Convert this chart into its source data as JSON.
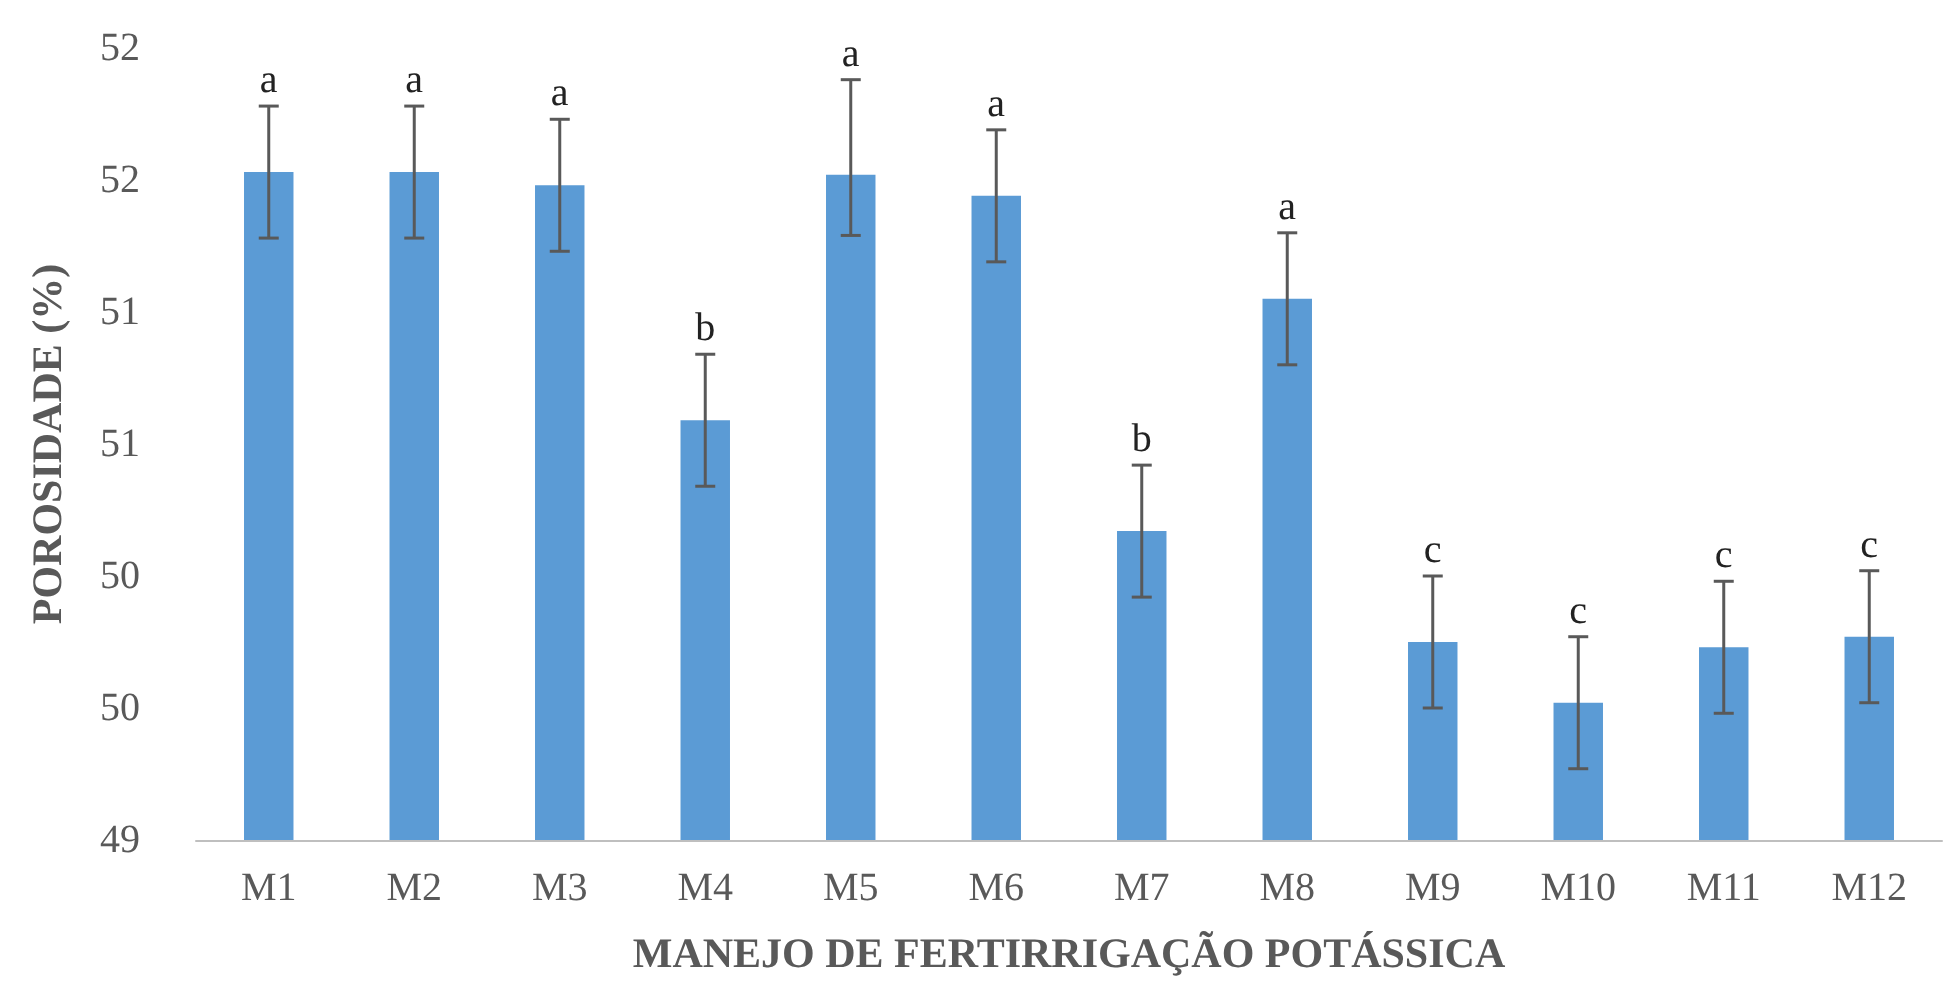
{
  "chart_data": {
    "type": "bar",
    "xlabel": "MANEJO DE FERTIRRIGAÇÃO POTÁSSICA",
    "ylabel": "POROSIDADE (%)",
    "categories": [
      "M1",
      "M2",
      "M3",
      "M4",
      "M5",
      "M6",
      "M7",
      "M8",
      "M9",
      "M10",
      "M11",
      "M12"
    ],
    "values": [
      51.53,
      51.53,
      51.48,
      50.59,
      51.52,
      51.44,
      50.17,
      51.05,
      49.75,
      49.52,
      49.73,
      49.77
    ],
    "errors": [
      0.25,
      0.25,
      0.25,
      0.25,
      [
        51.29,
        51.88
      ],
      0.25,
      0.25,
      0.25,
      0.25,
      0.25,
      0.25,
      0.25
    ],
    "color": "#5b9bd5",
    "grid": false,
    "ylim": [
      49,
      52
    ],
    "yticks": [
      49,
      {
        "value": 49.5,
        "label": "50"
      },
      50,
      {
        "value": 50.5,
        "label": "51"
      },
      51,
      {
        "value": 51.5,
        "label": "52"
      },
      52
    ],
    "annotations": [
      {
        "text": "a",
        "x": "M1",
        "y": 51.78
      },
      {
        "text": "a",
        "x": "M2",
        "y": 51.78
      },
      {
        "text": "a",
        "x": "M3",
        "y": 51.73
      },
      {
        "text": "b",
        "x": "M4",
        "y": 50.84
      },
      {
        "text": "a",
        "x": "M5",
        "y": 51.88
      },
      {
        "text": "a",
        "x": "M6",
        "y": 51.69
      },
      {
        "text": "b",
        "x": "M7",
        "y": 50.42
      },
      {
        "text": "a",
        "x": "M8",
        "y": 51.3
      },
      {
        "text": "c",
        "x": "M9",
        "y": 50.0
      },
      {
        "text": "c",
        "x": "M10",
        "y": 49.77
      },
      {
        "text": "c",
        "x": "M11",
        "y": 49.98
      },
      {
        "text": "c",
        "x": "M12",
        "y": 50.02
      }
    ]
  }
}
